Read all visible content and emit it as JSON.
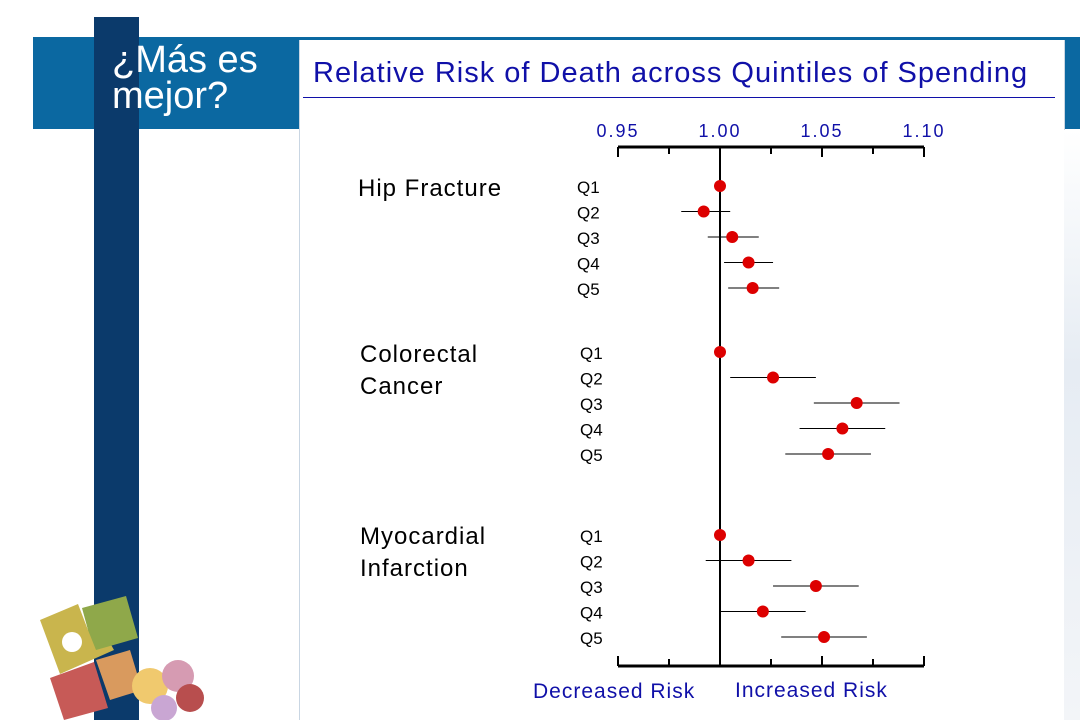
{
  "slide": {
    "heading": "¿Más es mejor?",
    "colors": {
      "navy_bar": "#0b3a6b",
      "blue_band": "#0b68a1",
      "title_blue": "#1010a8",
      "marker": "#dd0000"
    }
  },
  "chart_data": {
    "type": "scatter",
    "subtype": "forest-plot",
    "title": "Relative Risk of Death across Quintiles of Spending",
    "x_axis": {
      "range": [
        0.95,
        1.1
      ],
      "ticks": [
        0.95,
        1.0,
        1.05,
        1.1
      ],
      "tick_labels": [
        "0.95",
        "1.00",
        "1.05",
        "1.10"
      ],
      "reference_line": 1.0,
      "position": "top and bottom"
    },
    "direction_labels": {
      "left": "Decreased Risk",
      "right": "Increased Risk"
    },
    "grid": false,
    "groups": [
      {
        "name": "Hip Fracture",
        "points": [
          {
            "label": "Q1",
            "rr": 1.0
          },
          {
            "label": "Q2",
            "rr": 0.992,
            "lo": 0.981,
            "hi": 1.005
          },
          {
            "label": "Q3",
            "rr": 1.006,
            "lo": 0.994,
            "hi": 1.019
          },
          {
            "label": "Q4",
            "rr": 1.014,
            "lo": 1.002,
            "hi": 1.026
          },
          {
            "label": "Q5",
            "rr": 1.016,
            "lo": 1.004,
            "hi": 1.029
          }
        ]
      },
      {
        "name": "Colorectal Cancer",
        "points": [
          {
            "label": "Q1",
            "rr": 1.0
          },
          {
            "label": "Q2",
            "rr": 1.026,
            "lo": 1.005,
            "hi": 1.047
          },
          {
            "label": "Q3",
            "rr": 1.067,
            "lo": 1.046,
            "hi": 1.088
          },
          {
            "label": "Q4",
            "rr": 1.06,
            "lo": 1.039,
            "hi": 1.081
          },
          {
            "label": "Q5",
            "rr": 1.053,
            "lo": 1.032,
            "hi": 1.074
          }
        ]
      },
      {
        "name": "Myocardial Infarction",
        "points": [
          {
            "label": "Q1",
            "rr": 1.0
          },
          {
            "label": "Q2",
            "rr": 1.014,
            "lo": 0.993,
            "hi": 1.035
          },
          {
            "label": "Q3",
            "rr": 1.047,
            "lo": 1.026,
            "hi": 1.068
          },
          {
            "label": "Q4",
            "rr": 1.021,
            "lo": 1.0,
            "hi": 1.042
          },
          {
            "label": "Q5",
            "rr": 1.051,
            "lo": 1.03,
            "hi": 1.072
          }
        ]
      }
    ]
  }
}
